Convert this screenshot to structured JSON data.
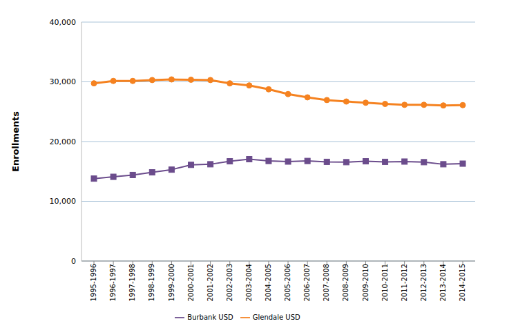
{
  "chart_data": {
    "type": "line",
    "y_label": "Enrollments",
    "categories": [
      "1995-1996",
      "1996-1997",
      "1997-1998",
      "1998-1999",
      "1999-2000",
      "2000-2001",
      "2001-2002",
      "2002-2003",
      "2003-2004",
      "2004-2005",
      "2005-2006",
      "2006-2007",
      "2007-2008",
      "2008-2009",
      "2009-2010",
      "2010-2011",
      "2011-2012",
      "2012-2013",
      "2013-2014",
      "2014-2015"
    ],
    "series": [
      {
        "name": "Glendale USD",
        "color": "#f58220",
        "marker": "circle",
        "values": [
          29750,
          30150,
          30150,
          30300,
          30400,
          30350,
          30300,
          29750,
          29400,
          28750,
          27950,
          27400,
          26950,
          26700,
          26500,
          26300,
          26150,
          26150,
          26050,
          26100
        ]
      },
      {
        "name": "Burbank USD",
        "color": "#6b4c8c",
        "marker": "square",
        "values": [
          13800,
          14100,
          14400,
          14850,
          15300,
          16100,
          16200,
          16700,
          17050,
          16750,
          16650,
          16750,
          16600,
          16550,
          16700,
          16600,
          16650,
          16550,
          16200,
          16300
        ]
      }
    ],
    "ylim": [
      0,
      40000
    ],
    "yticks": [
      0,
      {
        "value": 10000,
        "label": "10,000"
      },
      {
        "value": 20000,
        "label": "20,000"
      },
      {
        "value": 30000,
        "label": "30,000"
      },
      {
        "value": 40000,
        "label": "40,000"
      }
    ],
    "grid": true,
    "legend": "bottom"
  }
}
